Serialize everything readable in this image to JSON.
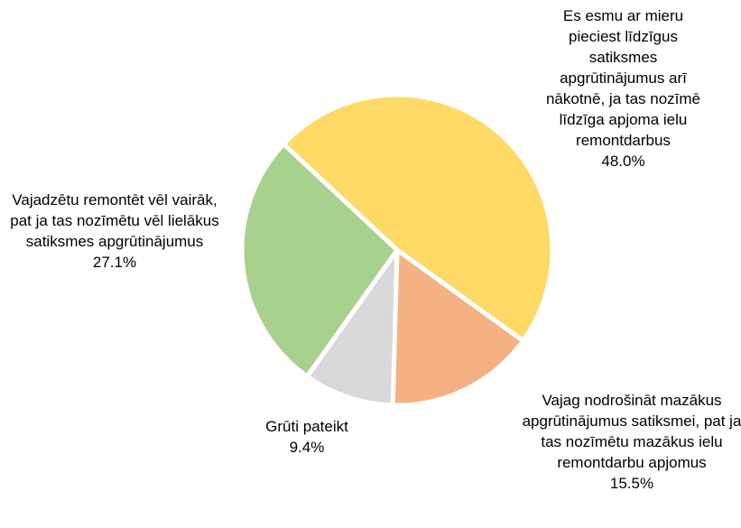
{
  "chart_data": {
    "type": "pie",
    "categories": [
      "Es esmu ar mieru pieciest līdzīgus satiksmes apgrūtinājumus arī nākotnē, ja tas nozīmē līdzīga apjoma ielu remontdarbus",
      "Vajag nodrošināt mazākus apgrūtinājumus satiksmei, pat ja tas nozīmētu mazākus ielu remontdarbu apjomus",
      "Grūti pateikt",
      "Vajadzētu remontēt vēl vairāk, pat ja tas nozīmētu vēl lielākus satiksmes apgrūtinājumus"
    ],
    "values": [
      48.0,
      15.5,
      9.4,
      27.1
    ],
    "value_labels": [
      "48.0%",
      "15.5%",
      "9.4%",
      "27.1%"
    ],
    "colors": [
      "#FFD966",
      "#F4B183",
      "#D9D9D9",
      "#A9D18E"
    ]
  }
}
